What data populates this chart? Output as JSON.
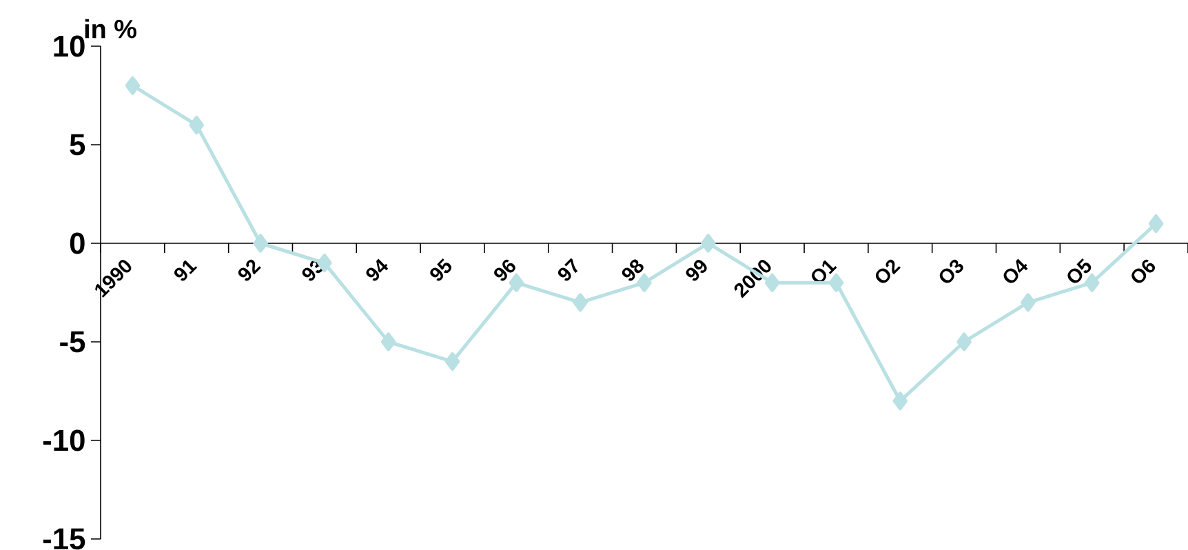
{
  "chart_data": {
    "type": "line",
    "ylabel": "in %",
    "categories": [
      "1990",
      "91",
      "92",
      "93",
      "94",
      "95",
      "96",
      "97",
      "98",
      "99",
      "2000",
      "O1",
      "O2",
      "O3",
      "O4",
      "O5",
      "O6"
    ],
    "values": [
      8,
      6,
      0,
      -1,
      -5,
      -6,
      -2,
      -3,
      -2,
      0,
      -2,
      -2,
      -8,
      -5,
      -3,
      -2,
      1
    ],
    "color": "#b9e0e3",
    "marker": "diamond",
    "line_style": "solid",
    "ylim": [
      -15,
      10
    ],
    "yticks": [
      -15,
      -10,
      -5,
      0,
      5,
      10
    ]
  }
}
